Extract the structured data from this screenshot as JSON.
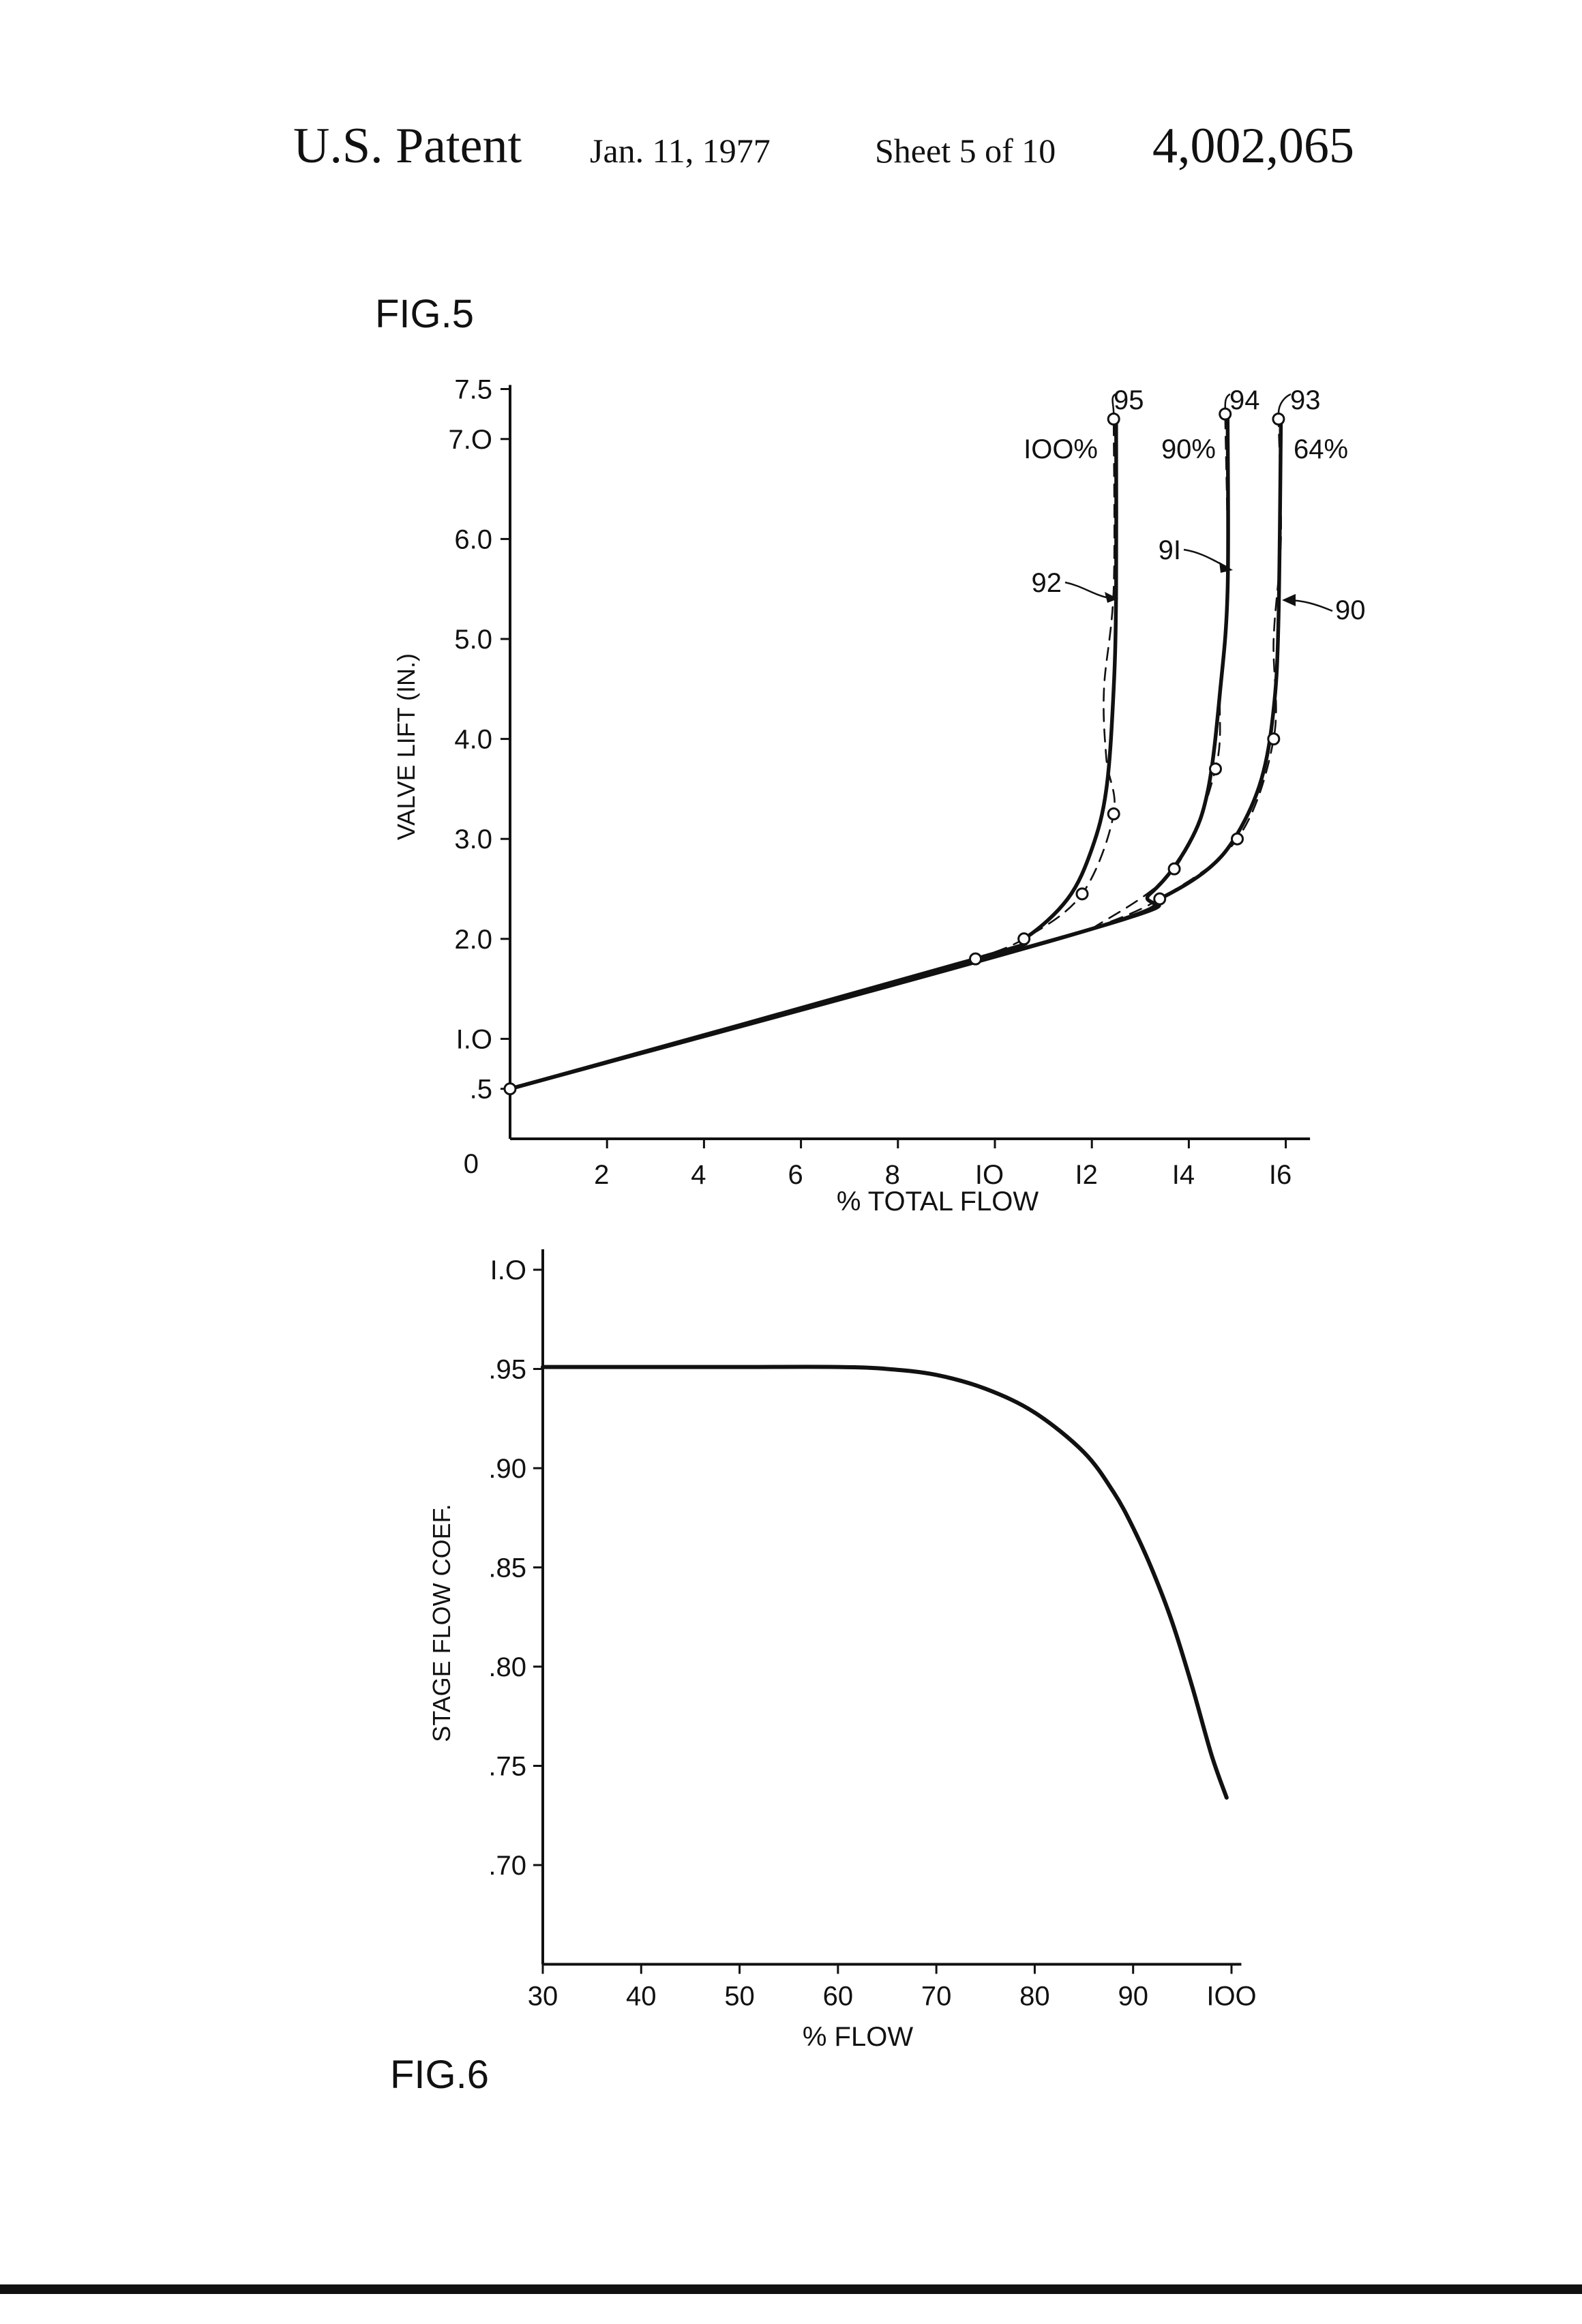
{
  "header": {
    "patent_label": "U.S. Patent",
    "date": "Jan. 11, 1977",
    "sheet": "Sheet 5 of 10",
    "patent_number": "4,002,065"
  },
  "figures": [
    {
      "label": "FIG.5",
      "chart_data": {
        "type": "line",
        "title": "",
        "xlabel": "% TOTAL FLOW",
        "ylabel": "VALVE LIFT (IN.)",
        "xlim": [
          0,
          16.5
        ],
        "ylim": [
          0,
          7.5
        ],
        "x_ticks": [
          {
            "v": 2,
            "label": "2"
          },
          {
            "v": 4,
            "label": "4"
          },
          {
            "v": 6,
            "label": "6"
          },
          {
            "v": 8,
            "label": "8"
          },
          {
            "v": 10,
            "label": "IO"
          },
          {
            "v": 12,
            "label": "I2"
          },
          {
            "v": 14,
            "label": "I4"
          },
          {
            "v": 16,
            "label": "I6"
          }
        ],
        "y_ticks": [
          {
            "v": 0.5,
            "label": ".5"
          },
          {
            "v": 1,
            "label": "I.O"
          },
          {
            "v": 2,
            "label": "2.0"
          },
          {
            "v": 3,
            "label": "3.0"
          },
          {
            "v": 4,
            "label": "4.0"
          },
          {
            "v": 5,
            "label": "5.0"
          },
          {
            "v": 6,
            "label": "6.0"
          },
          {
            "v": 7,
            "label": "7.O"
          },
          {
            "v": 7.5,
            "label": "7.5"
          }
        ],
        "origin_label": "0",
        "series": [
          {
            "ref": "92",
            "style": "solid",
            "points": [
              [
                0,
                0.5
              ],
              [
                9.6,
                1.8
              ],
              [
                10.6,
                2.0
              ],
              [
                11.5,
                2.4
              ],
              [
                12.0,
                2.9
              ],
              [
                12.3,
                3.5
              ],
              [
                12.45,
                4.5
              ],
              [
                12.5,
                5.5
              ],
              [
                12.5,
                7.2
              ]
            ]
          },
          {
            "ref": "95",
            "style": "dashed",
            "points": [
              [
                9.6,
                1.8
              ],
              [
                10.6,
                2.0
              ],
              [
                11.8,
                2.45
              ],
              [
                12.45,
                3.25
              ],
              [
                12.3,
                3.8
              ],
              [
                12.25,
                4.5
              ],
              [
                12.45,
                5.5
              ],
              [
                12.45,
                7.2
              ]
            ]
          },
          {
            "ref": "91",
            "style": "solid",
            "points": [
              [
                0,
                0.5
              ],
              [
                12.0,
                2.1
              ],
              [
                13.2,
                2.45
              ],
              [
                14.0,
                2.95
              ],
              [
                14.4,
                3.5
              ],
              [
                14.65,
                4.5
              ],
              [
                14.8,
                5.5
              ],
              [
                14.8,
                7.25
              ]
            ]
          },
          {
            "ref": "94",
            "style": "dashed",
            "points": [
              [
                12.0,
                2.1
              ],
              [
                13.7,
                2.7
              ],
              [
                14.55,
                3.7
              ],
              [
                14.65,
                4.5
              ],
              [
                14.8,
                5.5
              ],
              [
                14.75,
                7.25
              ]
            ]
          },
          {
            "ref": "90",
            "style": "solid",
            "points": [
              [
                0,
                0.5
              ],
              [
                12.0,
                2.1
              ],
              [
                13.4,
                2.4
              ],
              [
                14.4,
                2.7
              ],
              [
                15.0,
                3.05
              ],
              [
                15.5,
                3.6
              ],
              [
                15.75,
                4.3
              ],
              [
                15.85,
                5.2
              ],
              [
                15.9,
                7.2
              ]
            ]
          },
          {
            "ref": "93",
            "style": "dashed",
            "points": [
              [
                12.0,
                2.1
              ],
              [
                13.4,
                2.4
              ],
              [
                15.0,
                3.0
              ],
              [
                15.75,
                4.0
              ],
              [
                15.75,
                5.0
              ],
              [
                15.9,
                6.0
              ],
              [
                15.85,
                7.2
              ]
            ]
          }
        ],
        "markers": [
          [
            0,
            0.5
          ],
          [
            9.6,
            1.8
          ],
          [
            10.6,
            2.0
          ],
          [
            11.8,
            2.45
          ],
          [
            12.45,
            3.25
          ],
          [
            12.45,
            7.2
          ],
          [
            13.4,
            2.4
          ],
          [
            13.7,
            2.7
          ],
          [
            14.55,
            3.7
          ],
          [
            14.75,
            7.25
          ],
          [
            15.0,
            3.0
          ],
          [
            15.75,
            4.0
          ],
          [
            15.85,
            7.2
          ]
        ],
        "annotations": [
          {
            "text": "95",
            "kind": "ref"
          },
          {
            "text": "94",
            "kind": "ref"
          },
          {
            "text": "93",
            "kind": "ref"
          },
          {
            "text": "IOO%",
            "kind": "percent"
          },
          {
            "text": "90%",
            "kind": "percent"
          },
          {
            "text": "64%",
            "kind": "percent"
          },
          {
            "text": "92",
            "kind": "ref"
          },
          {
            "text": "9I",
            "kind": "ref"
          },
          {
            "text": "90",
            "kind": "ref"
          }
        ]
      }
    },
    {
      "label": "FIG.6",
      "chart_data": {
        "type": "line",
        "title": "",
        "xlabel": "% FLOW",
        "ylabel": "STAGE FLOW COEF.",
        "xlim": [
          30,
          101
        ],
        "ylim": [
          0.65,
          1.0
        ],
        "x_ticks": [
          {
            "v": 30,
            "label": "30"
          },
          {
            "v": 40,
            "label": "40"
          },
          {
            "v": 50,
            "label": "50"
          },
          {
            "v": 60,
            "label": "60"
          },
          {
            "v": 70,
            "label": "70"
          },
          {
            "v": 80,
            "label": "80"
          },
          {
            "v": 90,
            "label": "90"
          },
          {
            "v": 100,
            "label": "IOO"
          }
        ],
        "y_ticks": [
          {
            "v": 0.7,
            "label": ".70"
          },
          {
            "v": 0.75,
            "label": ".75"
          },
          {
            "v": 0.8,
            "label": ".80"
          },
          {
            "v": 0.85,
            "label": ".85"
          },
          {
            "v": 0.9,
            "label": ".90"
          },
          {
            "v": 0.95,
            "label": ".95"
          },
          {
            "v": 1.0,
            "label": "I.O"
          }
        ],
        "series": [
          {
            "style": "solid",
            "points": [
              [
                30,
                0.951
              ],
              [
                40,
                0.951
              ],
              [
                50,
                0.951
              ],
              [
                60,
                0.951
              ],
              [
                65,
                0.95
              ],
              [
                70,
                0.947
              ],
              [
                75,
                0.94
              ],
              [
                80,
                0.928
              ],
              [
                85,
                0.908
              ],
              [
                88,
                0.888
              ],
              [
                90,
                0.87
              ],
              [
                92,
                0.848
              ],
              [
                94,
                0.822
              ],
              [
                96,
                0.79
              ],
              [
                98,
                0.755
              ],
              [
                99.5,
                0.734
              ]
            ]
          }
        ]
      }
    }
  ]
}
